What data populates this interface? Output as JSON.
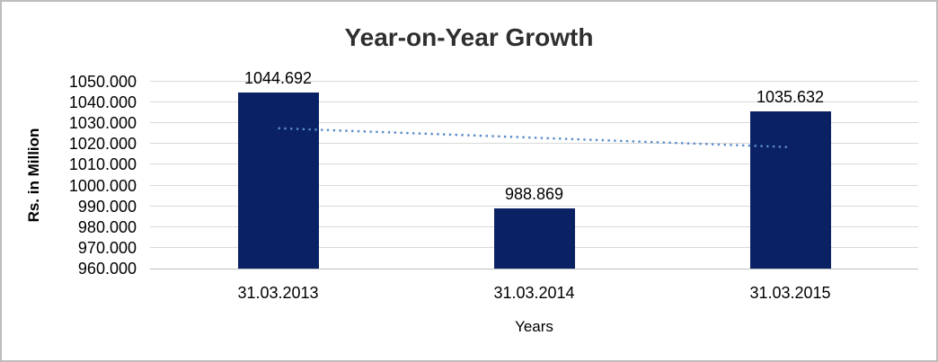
{
  "window": {
    "background": "#ffffff",
    "frame_border_color": "#bdbdbd"
  },
  "chart_data": {
    "type": "bar",
    "title": "Year-on-Year Growth",
    "xlabel": "Years",
    "ylabel": "Rs. in Million",
    "categories": [
      "31.03.2013",
      "31.03.2014",
      "31.03.2015"
    ],
    "values": [
      1044.692,
      988.869,
      1035.632
    ],
    "value_labels": [
      "1044.692",
      "988.869",
      "1035.632"
    ],
    "ylim": [
      960,
      1050
    ],
    "ytick_labels": [
      "1050.000",
      "1040.000",
      "1030.000",
      "1020.000",
      "1010.000",
      "1000.000",
      "990.000",
      "980.000",
      "970.000",
      "960.000"
    ],
    "grid": true,
    "legend_position": "none",
    "colors": {
      "bar_fill": "#0a2264",
      "trendline": "#5b8cc8",
      "gridline": "#d9d9d9",
      "axis_line": "#bfbfbf",
      "title_text": "#2f2f2f",
      "label_text": "#000000"
    },
    "trendline": {
      "style": "dotted",
      "start_value": 1027.6,
      "end_value": 1018.5
    }
  }
}
